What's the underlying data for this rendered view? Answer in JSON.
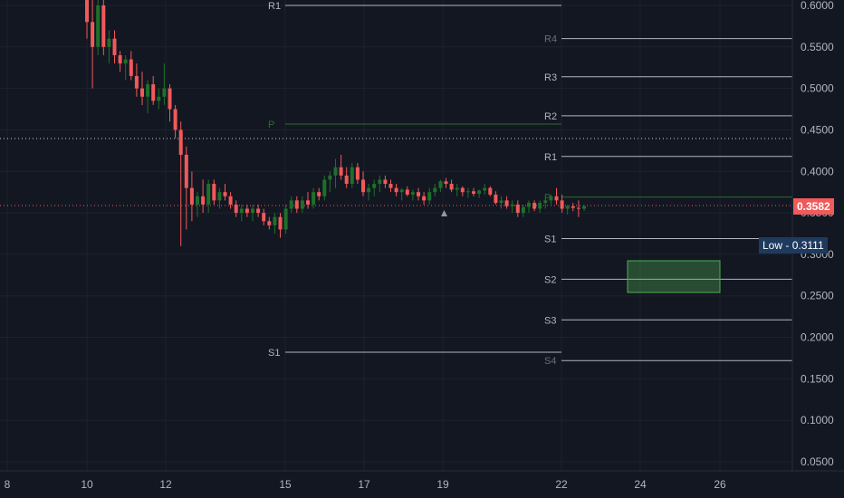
{
  "price_axis": {
    "ticks": [
      "0.6000",
      "0.5500",
      "0.5000",
      "0.4500",
      "0.4000",
      "0.3500",
      "0.3000",
      "0.2500",
      "0.2000",
      "0.1500",
      "0.1000",
      "0.0500"
    ]
  },
  "time_axis": {
    "ticks": [
      "8",
      "10",
      "12",
      "15",
      "17",
      "19",
      "22",
      "24",
      "26"
    ]
  },
  "current_price": {
    "label": "0.3582",
    "value": 0.3582,
    "color": "#f7525f"
  },
  "low_marker": {
    "label": "Low",
    "value_label": "0.3111",
    "color": "#1e3a5f"
  },
  "pivots": {
    "old_period": [
      {
        "label": "R1",
        "value": 0.6
      },
      {
        "label": "P",
        "value": 0.457
      },
      {
        "label": "S1",
        "value": 0.182
      }
    ],
    "new_period": [
      {
        "label": "R4",
        "value": 0.56
      },
      {
        "label": "R3",
        "value": 0.514
      },
      {
        "label": "R2",
        "value": 0.467
      },
      {
        "label": "R1",
        "value": 0.418
      },
      {
        "label": "P",
        "value": 0.369
      },
      {
        "label": "S1",
        "value": 0.319
      },
      {
        "label": "S2",
        "value": 0.27
      },
      {
        "label": "S3",
        "value": 0.221
      },
      {
        "label": "S4",
        "value": 0.172
      }
    ]
  },
  "chart_data": {
    "type": "candlestick",
    "up_color": "#26a69a",
    "up_color_render": "#1f6f2a",
    "down_color": "#f05a5a",
    "candles": [
      [
        0.62,
        0.63,
        0.56,
        0.58
      ],
      [
        0.58,
        0.61,
        0.5,
        0.55
      ],
      [
        0.55,
        0.61,
        0.54,
        0.6
      ],
      [
        0.6,
        0.61,
        0.54,
        0.55
      ],
      [
        0.55,
        0.57,
        0.53,
        0.56
      ],
      [
        0.56,
        0.57,
        0.53,
        0.54
      ],
      [
        0.54,
        0.545,
        0.52,
        0.53
      ],
      [
        0.53,
        0.54,
        0.51,
        0.535
      ],
      [
        0.535,
        0.545,
        0.51,
        0.515
      ],
      [
        0.515,
        0.53,
        0.49,
        0.5
      ],
      [
        0.5,
        0.52,
        0.48,
        0.49
      ],
      [
        0.49,
        0.51,
        0.47,
        0.505
      ],
      [
        0.505,
        0.515,
        0.48,
        0.485
      ],
      [
        0.485,
        0.5,
        0.475,
        0.49
      ],
      [
        0.49,
        0.53,
        0.48,
        0.5
      ],
      [
        0.5,
        0.505,
        0.46,
        0.475
      ],
      [
        0.475,
        0.48,
        0.44,
        0.45
      ],
      [
        0.45,
        0.46,
        0.31,
        0.42
      ],
      [
        0.42,
        0.43,
        0.33,
        0.38
      ],
      [
        0.38,
        0.4,
        0.34,
        0.36
      ],
      [
        0.36,
        0.375,
        0.345,
        0.37
      ],
      [
        0.37,
        0.39,
        0.35,
        0.36
      ],
      [
        0.36,
        0.39,
        0.35,
        0.385
      ],
      [
        0.385,
        0.39,
        0.36,
        0.365
      ],
      [
        0.365,
        0.38,
        0.355,
        0.375
      ],
      [
        0.375,
        0.385,
        0.365,
        0.37
      ],
      [
        0.37,
        0.375,
        0.355,
        0.36
      ],
      [
        0.36,
        0.365,
        0.345,
        0.35
      ],
      [
        0.35,
        0.36,
        0.34,
        0.355
      ],
      [
        0.355,
        0.36,
        0.345,
        0.35
      ],
      [
        0.35,
        0.36,
        0.34,
        0.355
      ],
      [
        0.355,
        0.36,
        0.345,
        0.35
      ],
      [
        0.35,
        0.355,
        0.335,
        0.34
      ],
      [
        0.34,
        0.345,
        0.33,
        0.335
      ],
      [
        0.335,
        0.35,
        0.325,
        0.345
      ],
      [
        0.345,
        0.35,
        0.32,
        0.33
      ],
      [
        0.33,
        0.36,
        0.325,
        0.355
      ],
      [
        0.355,
        0.37,
        0.35,
        0.365
      ],
      [
        0.365,
        0.37,
        0.35,
        0.355
      ],
      [
        0.355,
        0.37,
        0.35,
        0.365
      ],
      [
        0.365,
        0.375,
        0.355,
        0.36
      ],
      [
        0.36,
        0.38,
        0.355,
        0.375
      ],
      [
        0.375,
        0.38,
        0.365,
        0.37
      ],
      [
        0.37,
        0.395,
        0.365,
        0.39
      ],
      [
        0.39,
        0.4,
        0.375,
        0.395
      ],
      [
        0.395,
        0.415,
        0.38,
        0.405
      ],
      [
        0.405,
        0.42,
        0.39,
        0.395
      ],
      [
        0.395,
        0.405,
        0.38,
        0.385
      ],
      [
        0.385,
        0.41,
        0.38,
        0.405
      ],
      [
        0.405,
        0.41,
        0.385,
        0.39
      ],
      [
        0.39,
        0.4,
        0.37,
        0.375
      ],
      [
        0.375,
        0.385,
        0.365,
        0.38
      ],
      [
        0.38,
        0.39,
        0.37,
        0.385
      ],
      [
        0.385,
        0.395,
        0.375,
        0.39
      ],
      [
        0.39,
        0.395,
        0.38,
        0.385
      ],
      [
        0.385,
        0.39,
        0.375,
        0.38
      ],
      [
        0.38,
        0.385,
        0.37,
        0.375
      ],
      [
        0.375,
        0.38,
        0.365,
        0.378
      ],
      [
        0.378,
        0.382,
        0.37,
        0.372
      ],
      [
        0.372,
        0.378,
        0.365,
        0.375
      ],
      [
        0.375,
        0.38,
        0.365,
        0.37
      ],
      [
        0.37,
        0.375,
        0.36,
        0.365
      ],
      [
        0.365,
        0.38,
        0.36,
        0.375
      ],
      [
        0.375,
        0.385,
        0.37,
        0.38
      ],
      [
        0.38,
        0.39,
        0.375,
        0.388
      ],
      [
        0.388,
        0.392,
        0.38,
        0.385
      ],
      [
        0.385,
        0.39,
        0.375,
        0.378
      ],
      [
        0.378,
        0.385,
        0.37,
        0.38
      ],
      [
        0.38,
        0.382,
        0.37,
        0.375
      ],
      [
        0.375,
        0.38,
        0.368,
        0.376
      ],
      [
        0.376,
        0.38,
        0.37,
        0.373
      ],
      [
        0.373,
        0.378,
        0.368,
        0.377
      ],
      [
        0.377,
        0.385,
        0.372,
        0.38
      ],
      [
        0.38,
        0.382,
        0.37,
        0.372
      ],
      [
        0.372,
        0.376,
        0.36,
        0.362
      ],
      [
        0.362,
        0.37,
        0.355,
        0.365
      ],
      [
        0.365,
        0.37,
        0.355,
        0.358
      ],
      [
        0.358,
        0.365,
        0.35,
        0.36
      ],
      [
        0.36,
        0.365,
        0.345,
        0.35
      ],
      [
        0.35,
        0.36,
        0.345,
        0.357
      ],
      [
        0.357,
        0.365,
        0.35,
        0.362
      ],
      [
        0.362,
        0.365,
        0.352,
        0.355
      ],
      [
        0.355,
        0.365,
        0.35,
        0.362
      ],
      [
        0.362,
        0.37,
        0.355,
        0.365
      ],
      [
        0.365,
        0.372,
        0.36,
        0.37
      ],
      [
        0.37,
        0.38,
        0.36,
        0.365
      ],
      [
        0.365,
        0.372,
        0.35,
        0.355
      ],
      [
        0.355,
        0.36,
        0.348,
        0.358
      ],
      [
        0.358,
        0.362,
        0.352,
        0.356
      ],
      [
        0.356,
        0.365,
        0.345,
        0.355
      ],
      [
        0.355,
        0.36,
        0.352,
        0.358
      ]
    ]
  }
}
